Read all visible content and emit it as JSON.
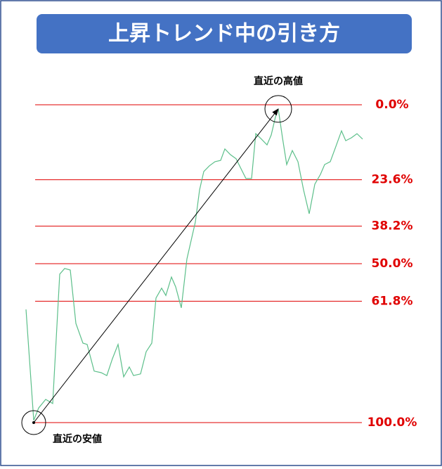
{
  "chart_data": {
    "type": "line",
    "title": "上昇トレンド中の引き方",
    "annotations": {
      "high": "直近の高値",
      "low": "直近の安値"
    },
    "ylim": [
      0,
      100
    ],
    "xlim": [
      0,
      479
    ],
    "inverted": true,
    "yticks": [
      {
        "value": 0,
        "label": "0.0%"
      },
      {
        "value": 23.6,
        "label": "23.6%"
      },
      {
        "value": 38.2,
        "label": "38.2%"
      },
      {
        "value": 50,
        "label": "50.0%"
      },
      {
        "value": 61.8,
        "label": "61.8%"
      },
      {
        "value": 100,
        "label": "100.0%"
      }
    ],
    "grid_color": "#e00000",
    "label_color": "#e00000",
    "series": [
      {
        "color": "#5cbf8a",
        "x": [
          0,
          11,
          18,
          28,
          38,
          48,
          55,
          63,
          71,
          81,
          87,
          97,
          107,
          115,
          123,
          131,
          139,
          147,
          153,
          163,
          171,
          179,
          185,
          193,
          199,
          207,
          213,
          221,
          229,
          235,
          241,
          247,
          253,
          261,
          269,
          277,
          283,
          291,
          299,
          305,
          313,
          321,
          327,
          335,
          343,
          349,
          355,
          359,
          365,
          371,
          379,
          387,
          395,
          403,
          411,
          419,
          425,
          433,
          441,
          449,
          455,
          463,
          471,
          479
        ],
        "values": [
          64.4,
          99.3,
          95.4,
          92.7,
          94.0,
          53.3,
          51.5,
          52.0,
          68.8,
          75.0,
          75.4,
          83.8,
          84.3,
          85.2,
          79.9,
          75.4,
          85.6,
          82.5,
          85.2,
          84.7,
          77.7,
          75.0,
          60.8,
          57.7,
          60.0,
          54.2,
          57.3,
          63.9,
          48.5,
          42.7,
          36.9,
          26.8,
          21.0,
          19.2,
          17.9,
          17.5,
          13.9,
          15.7,
          17.0,
          19.7,
          23.2,
          23.2,
          9.1,
          10.8,
          12.6,
          9.5,
          3.8,
          1.3,
          10.4,
          18.8,
          14.4,
          17.9,
          26.8,
          34.3,
          25.0,
          21.9,
          18.8,
          17.9,
          13.1,
          8.2,
          11.3,
          10.4,
          9.1,
          10.8
        ]
      }
    ]
  }
}
